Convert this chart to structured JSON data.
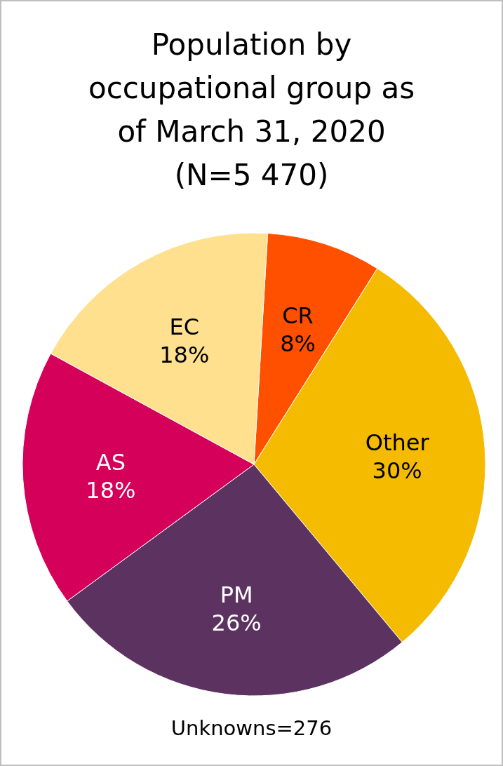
{
  "chart_data": {
    "type": "pie",
    "title": "Population by occupational group as of March 31, 2020 (N=5 470)",
    "categories": [
      "CR",
      "Other",
      "PM",
      "AS",
      "EC"
    ],
    "values": [
      8,
      30,
      26,
      18,
      18
    ],
    "value_labels": [
      "8%",
      "30%",
      "26%",
      "18%",
      "18%"
    ],
    "colors": [
      "#ff5000",
      "#f5bb00",
      "#5c3260",
      "#d4005a",
      "#ffe08f"
    ],
    "annotations": [
      "Unknowns=276"
    ]
  }
}
